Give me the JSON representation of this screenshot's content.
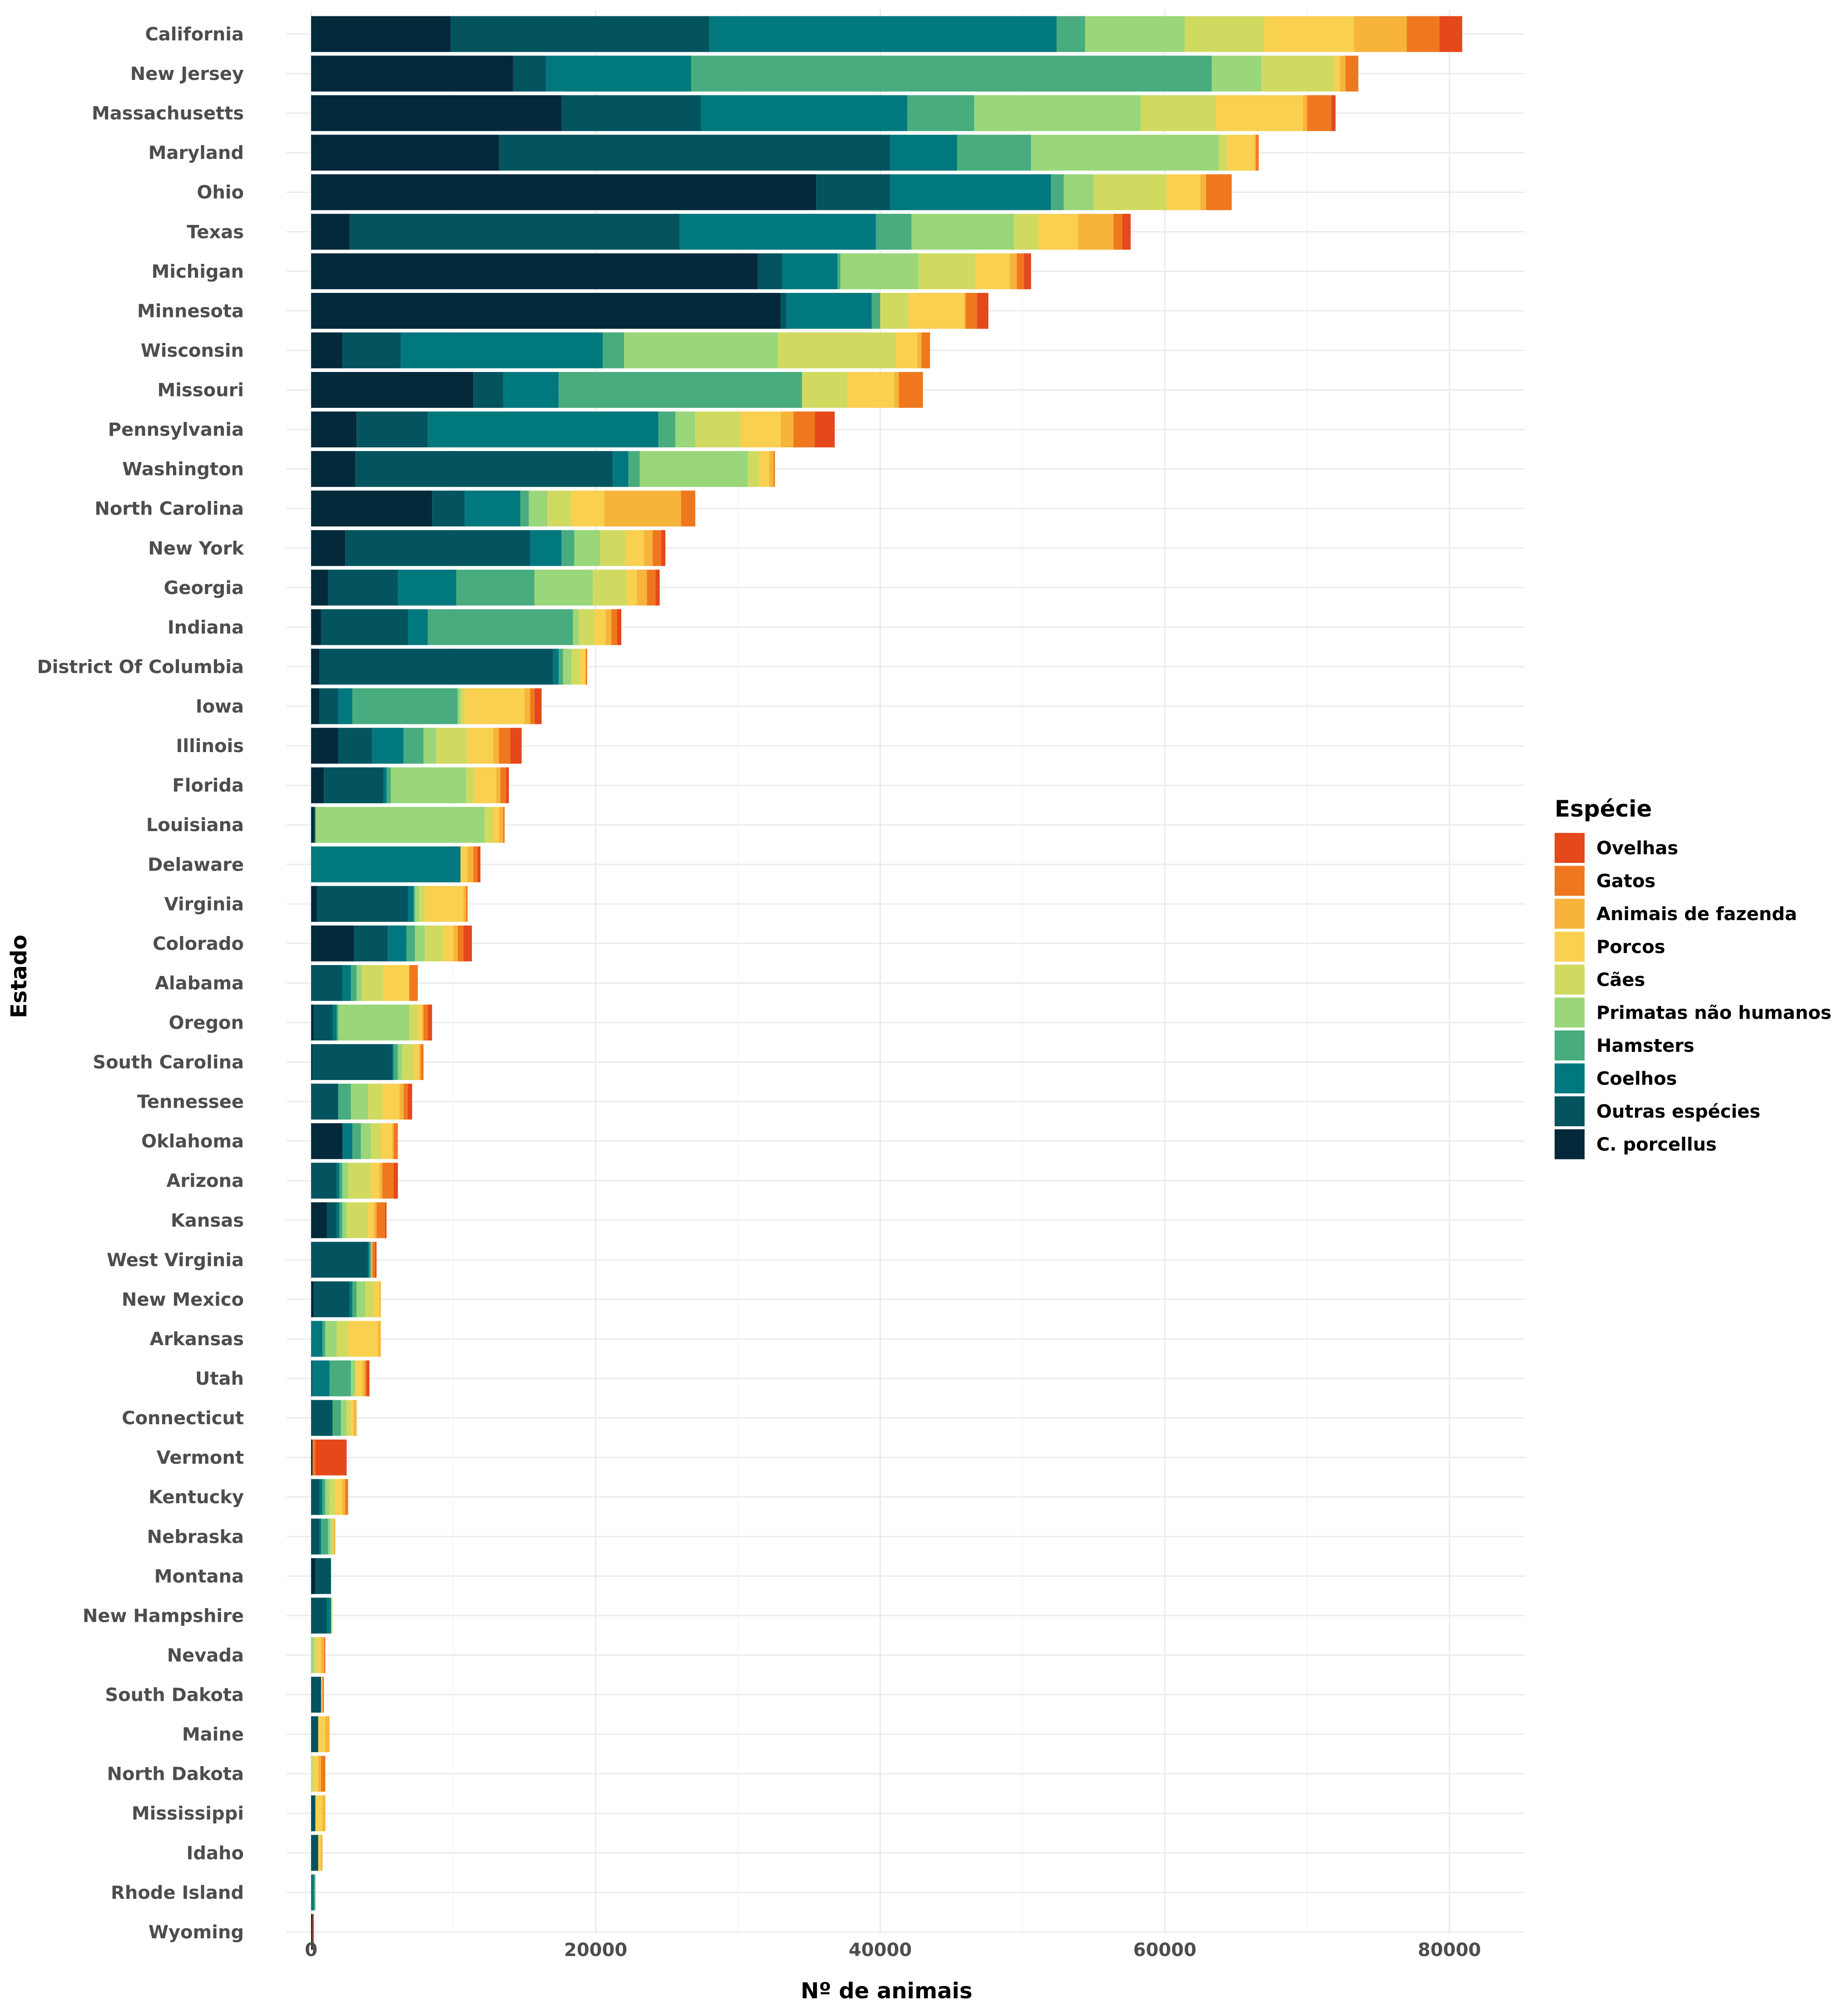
{
  "chart_data": {
    "type": "bar",
    "orientation": "horizontal",
    "stacked": true,
    "xlabel": "Nº de animais",
    "ylabel": "Estado",
    "xlim": [
      0,
      85000
    ],
    "x_ticks": [
      0,
      20000,
      40000,
      60000,
      80000
    ],
    "grid": true,
    "legend": {
      "title": "Espécie",
      "position": "right"
    },
    "categories": [
      "California",
      "New Jersey",
      "Massachusetts",
      "Maryland",
      "Ohio",
      "Texas",
      "Michigan",
      "Minnesota",
      "Wisconsin",
      "Missouri",
      "Pennsylvania",
      "Washington",
      "North Carolina",
      "New York",
      "Georgia",
      "Indiana",
      "District Of Columbia",
      "Iowa",
      "Illinois",
      "Florida",
      "Louisiana",
      "Delaware",
      "Virginia",
      "Colorado",
      "Alabama",
      "Oregon",
      "South Carolina",
      "Tennessee",
      "Oklahoma",
      "Arizona",
      "Kansas",
      "West Virginia",
      "New Mexico",
      "Arkansas",
      "Utah",
      "Connecticut",
      "Vermont",
      "Kentucky",
      "Nebraska",
      "Montana",
      "New Hampshire",
      "Nevada",
      "South Dakota",
      "Maine",
      "North Dakota",
      "Mississippi",
      "Idaho",
      "Rhode Island",
      "Wyoming"
    ],
    "series": [
      {
        "name": "C. porcellus",
        "color": "#04293a",
        "values": [
          9800,
          14200,
          17600,
          13200,
          35500,
          2700,
          31400,
          33000,
          2200,
          11400,
          3200,
          3100,
          8500,
          2400,
          1200,
          700,
          600,
          600,
          1900,
          900,
          200,
          0,
          400,
          3000,
          0,
          200,
          100,
          0,
          2200,
          0,
          1100,
          0,
          200,
          0,
          0,
          0,
          100,
          0,
          0,
          300,
          0,
          0,
          0,
          0,
          0,
          0,
          0,
          0,
          100
        ]
      },
      {
        "name": "Outras espécies",
        "color": "#03545e",
        "values": [
          18200,
          2300,
          9800,
          27500,
          5200,
          23200,
          1700,
          400,
          4100,
          2100,
          5000,
          18100,
          2300,
          13000,
          4900,
          6100,
          16400,
          1300,
          2400,
          4200,
          100,
          0,
          6400,
          2400,
          2200,
          1300,
          5600,
          1900,
          0,
          1800,
          700,
          4000,
          2500,
          0,
          100,
          1500,
          0,
          600,
          600,
          1100,
          1100,
          0,
          700,
          500,
          0,
          300,
          500,
          0,
          0
        ]
      },
      {
        "name": "Coelhos",
        "color": "#01787e",
        "values": [
          24400,
          10200,
          14500,
          4700,
          11300,
          13800,
          3900,
          6000,
          14200,
          3900,
          16200,
          1100,
          3900,
          2200,
          4100,
          1400,
          400,
          1000,
          2200,
          200,
          0,
          10500,
          400,
          1300,
          600,
          300,
          100,
          0,
          700,
          200,
          200,
          100,
          200,
          800,
          1200,
          0,
          0,
          200,
          100,
          0,
          300,
          0,
          0,
          0,
          0,
          0,
          0,
          200,
          0
        ]
      },
      {
        "name": "Hamsters",
        "color": "#48ac7e",
        "values": [
          2000,
          36600,
          4700,
          5200,
          900,
          2500,
          200,
          600,
          1500,
          17100,
          1200,
          800,
          600,
          900,
          5500,
          10200,
          300,
          7400,
          1400,
          300,
          0,
          0,
          100,
          600,
          400,
          100,
          300,
          900,
          600,
          200,
          200,
          100,
          300,
          200,
          1500,
          600,
          0,
          200,
          500,
          0,
          0,
          0,
          0,
          0,
          0,
          0,
          0,
          100,
          0
        ]
      },
      {
        "name": "Primatas não humanos",
        "color": "#9ad67a",
        "values": [
          7000,
          3500,
          11700,
          13200,
          2100,
          7200,
          5500,
          0,
          10800,
          0,
          1400,
          7600,
          1300,
          1800,
          4100,
          400,
          600,
          200,
          900,
          5300,
          11900,
          0,
          300,
          700,
          400,
          5000,
          300,
          1200,
          700,
          400,
          300,
          0,
          600,
          800,
          300,
          400,
          0,
          300,
          200,
          0,
          0,
          200,
          0,
          0,
          0,
          0,
          0,
          0,
          0
        ]
      },
      {
        "name": "Cães",
        "color": "#d1da60",
        "values": [
          5600,
          5100,
          5300,
          600,
          5100,
          1700,
          4000,
          2000,
          8300,
          3200,
          3200,
          800,
          1700,
          1800,
          2400,
          1100,
          600,
          300,
          2200,
          600,
          600,
          0,
          400,
          1300,
          1500,
          600,
          800,
          1000,
          700,
          1600,
          1500,
          0,
          600,
          800,
          0,
          300,
          0,
          400,
          200,
          0,
          100,
          200,
          0,
          0,
          200,
          0,
          0,
          0,
          0
        ]
      },
      {
        "name": "Porcos",
        "color": "#f9d04f",
        "values": [
          6300,
          400,
          6100,
          1900,
          2400,
          2800,
          2400,
          3900,
          1500,
          3300,
          2800,
          700,
          2300,
          1300,
          700,
          800,
          400,
          4200,
          1800,
          1500,
          400,
          500,
          2700,
          700,
          1800,
          300,
          400,
          1200,
          800,
          600,
          400,
          0,
          400,
          2100,
          500,
          200,
          0,
          500,
          0,
          0,
          0,
          300,
          100,
          500,
          300,
          500,
          200,
          0,
          0
        ]
      },
      {
        "name": "Animais de fazenda",
        "color": "#f6b43a",
        "values": [
          3700,
          400,
          300,
          100,
          400,
          2500,
          500,
          100,
          300,
          300,
          900,
          300,
          5400,
          600,
          700,
          400,
          0,
          400,
          400,
          300,
          300,
          400,
          200,
          300,
          0,
          100,
          100,
          300,
          100,
          200,
          200,
          100,
          100,
          200,
          200,
          200,
          0,
          200,
          100,
          0,
          0,
          200,
          0,
          300,
          200,
          200,
          100,
          0,
          0
        ]
      },
      {
        "name": "Gatos",
        "color": "#ef781f",
        "values": [
          2300,
          900,
          1700,
          200,
          1800,
          600,
          500,
          800,
          600,
          1700,
          1500,
          100,
          1000,
          600,
          600,
          400,
          100,
          300,
          800,
          400,
          100,
          300,
          100,
          400,
          600,
          300,
          200,
          300,
          300,
          800,
          600,
          200,
          0,
          0,
          100,
          0,
          200,
          200,
          0,
          0,
          0,
          100,
          100,
          0,
          300,
          0,
          0,
          0,
          0
        ]
      },
      {
        "name": "Ovelhas",
        "color": "#e4481b",
        "values": [
          1600,
          0,
          300,
          0,
          0,
          600,
          500,
          800,
          0,
          0,
          1400,
          0,
          0,
          300,
          300,
          300,
          0,
          500,
          800,
          200,
          0,
          200,
          0,
          600,
          0,
          300,
          0,
          300,
          0,
          300,
          100,
          100,
          0,
          0,
          200,
          0,
          2200,
          0,
          0,
          0,
          0,
          0,
          0,
          0,
          0,
          0,
          0,
          0,
          100
        ]
      }
    ]
  }
}
